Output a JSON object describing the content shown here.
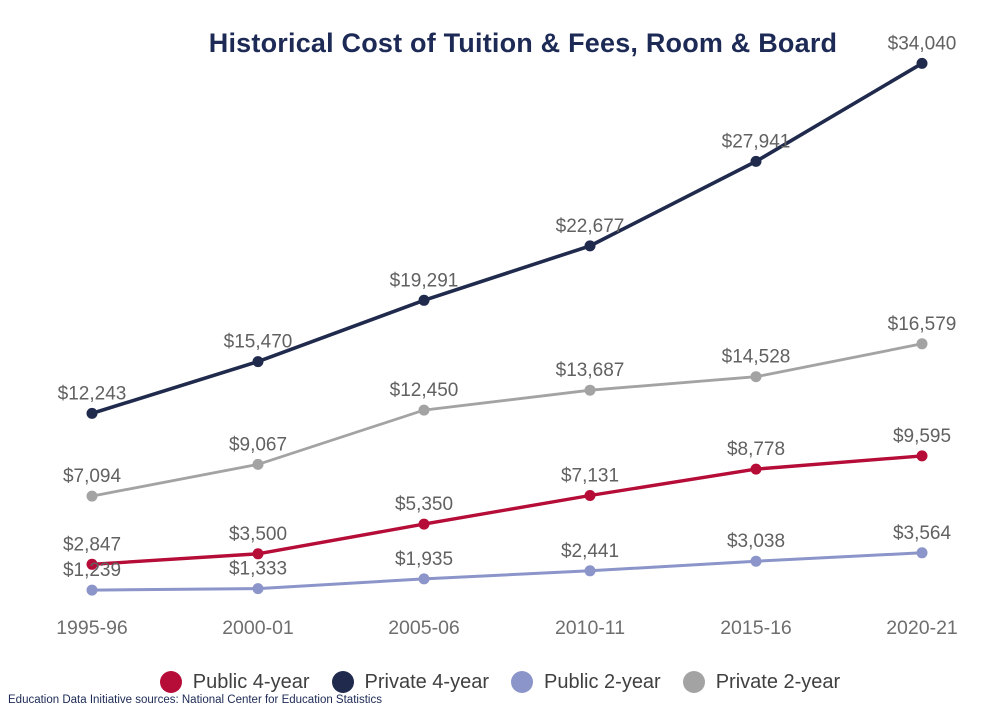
{
  "title": "Historical Cost of Tuition & Fees, Room & Board",
  "footer": "Education Data Initiative sources: National Center for Education Statistics",
  "colors": {
    "title_navy": "#1c2a55",
    "data_label_gray": "#616161",
    "axis_label_gray": "#6e6e6e",
    "legend_text": "#404040"
  },
  "chart_data": {
    "type": "line",
    "title": "Historical Cost of Tuition & Fees, Room & Board",
    "xlabel": "",
    "ylabel": "",
    "categories": [
      "1995-96",
      "2000-01",
      "2005-06",
      "2010-11",
      "2015-16",
      "2020-21"
    ],
    "ylim": [
      0,
      38000
    ],
    "grid": false,
    "legend_position": "bottom",
    "series": [
      {
        "name": "Public 4-year",
        "key": "public-4-year",
        "color": "#b60c38",
        "values": [
          2847,
          3500,
          5350,
          7131,
          8778,
          9595
        ],
        "labels": [
          "$2,847",
          "$3,500",
          "$5,350",
          "$7,131",
          "$8,778",
          "$9,595"
        ]
      },
      {
        "name": "Private 4-year",
        "key": "private-4-year",
        "color": "#202a4d",
        "values": [
          12243,
          15470,
          19291,
          22677,
          27941,
          34040
        ],
        "labels": [
          "$12,243",
          "$15,470",
          "$19,291",
          "$22,677",
          "$27,941",
          "$34,040"
        ]
      },
      {
        "name": "Public 2-year",
        "key": "public-2-year",
        "color": "#8b95c9",
        "values": [
          1239,
          1333,
          1935,
          2441,
          3038,
          3564
        ],
        "labels": [
          "$1,239",
          "$1,333",
          "$1,935",
          "$2,441",
          "$3,038",
          "$3,564"
        ]
      },
      {
        "name": "Private 2-year",
        "key": "private-2-year",
        "color": "#a3a3a3",
        "values": [
          7094,
          9067,
          12450,
          13687,
          14528,
          16579
        ],
        "labels": [
          "$7,094",
          "$9,067",
          "$12,450",
          "$13,687",
          "$14,528",
          "$16,579"
        ]
      }
    ]
  }
}
